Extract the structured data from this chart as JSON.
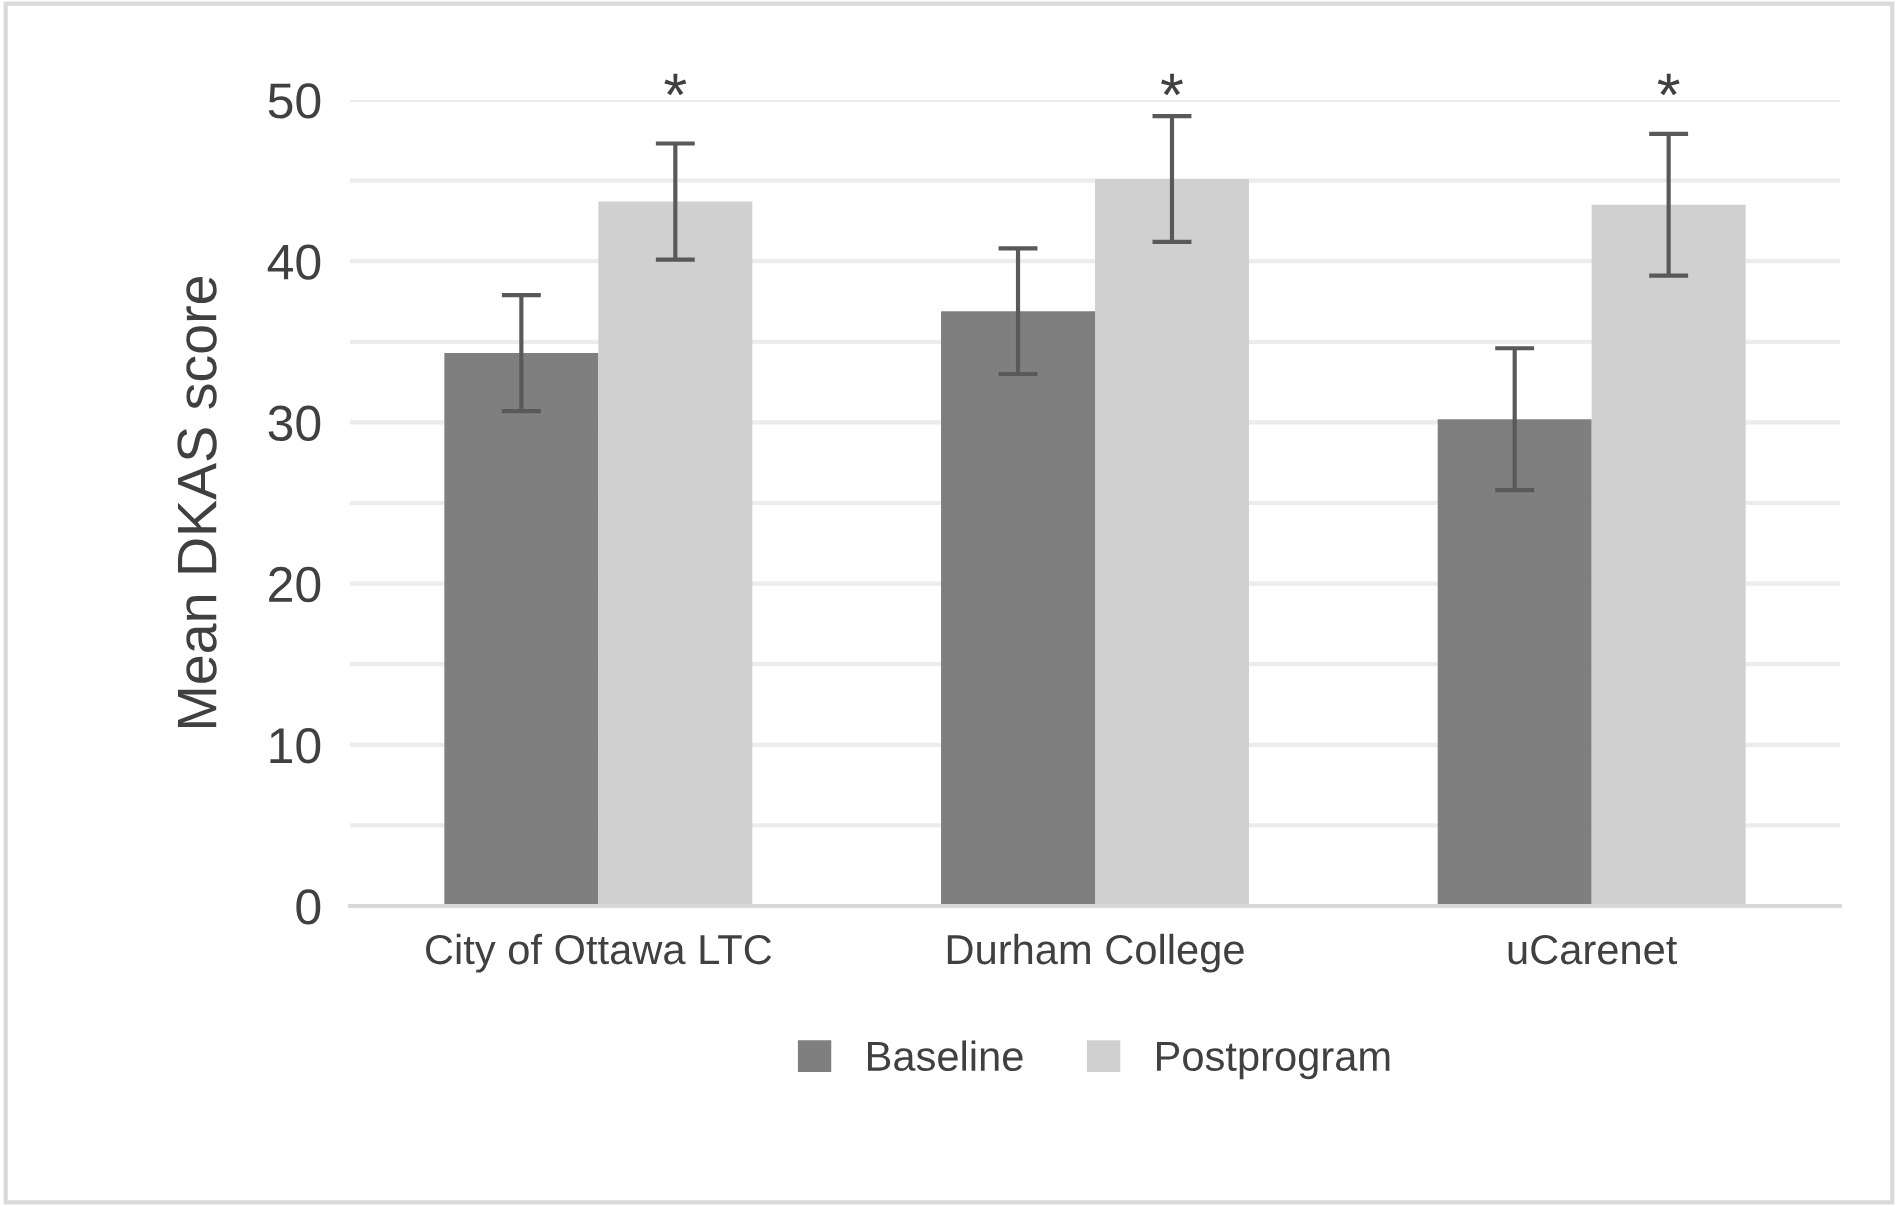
{
  "chart_data": {
    "type": "bar",
    "ylabel": "Mean DKAS score",
    "categories": [
      "City of Ottawa LTC",
      "Durham College",
      "uCarenet"
    ],
    "series": [
      {
        "name": "Baseline",
        "color": "#7f7f7f",
        "values": [
          34.3,
          36.9,
          30.2
        ],
        "errors": [
          3.6,
          3.9,
          4.4
        ]
      },
      {
        "name": "Postprogram",
        "color": "#d0d0d0",
        "values": [
          43.7,
          45.1,
          43.5
        ],
        "errors": [
          3.6,
          3.9,
          4.4
        ]
      }
    ],
    "ylim": [
      0,
      50
    ],
    "yticks": [
      0,
      {
        "value": 5,
        "label": null
      },
      10,
      {
        "value": 15,
        "label": null
      },
      20,
      {
        "value": 25,
        "label": null
      },
      30,
      {
        "value": 35,
        "label": null
      },
      40,
      {
        "value": 45,
        "label": null
      },
      50
    ],
    "grid": "y",
    "legend": "bottom",
    "annotations": [
      "*",
      "*",
      "*"
    ]
  }
}
